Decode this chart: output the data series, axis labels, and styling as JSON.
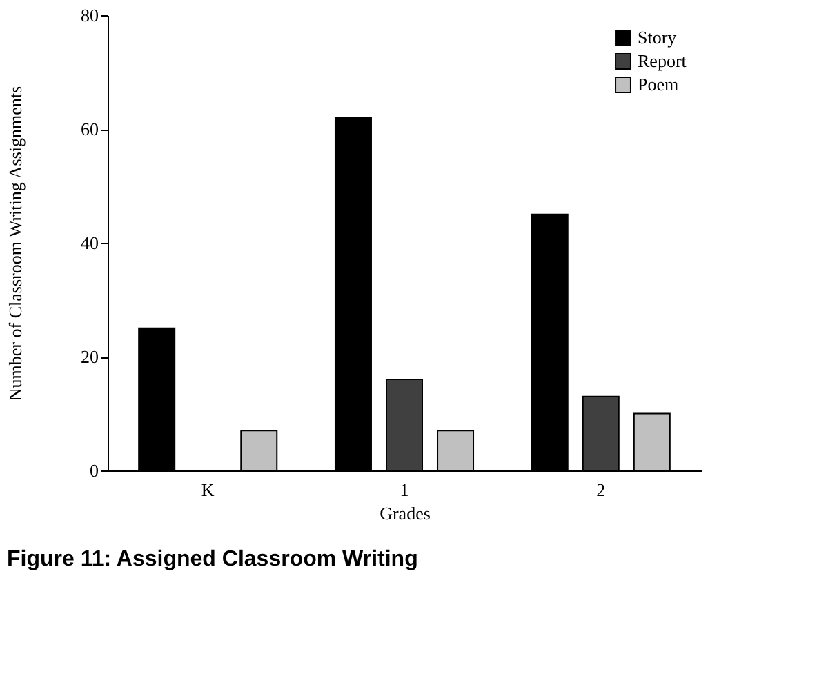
{
  "chart_data": {
    "type": "bar",
    "title": "Figure 11:  Assigned Classroom Writing",
    "xlabel": "Grades",
    "ylabel": "Number of Classroom Writing Assignments",
    "categories": [
      "K",
      "1",
      "2"
    ],
    "series": [
      {
        "name": "Story",
        "color": "#000000",
        "values": [
          25,
          62,
          45
        ]
      },
      {
        "name": "Report",
        "color": "#404040",
        "values": [
          null,
          16,
          13
        ]
      },
      {
        "name": "Poem",
        "color": "#c0c0c0",
        "values": [
          7,
          7,
          10
        ]
      }
    ],
    "ylim": [
      0,
      80
    ],
    "yticks": [
      0,
      20,
      40,
      60,
      80
    ],
    "grid": false,
    "legend": "top right"
  }
}
